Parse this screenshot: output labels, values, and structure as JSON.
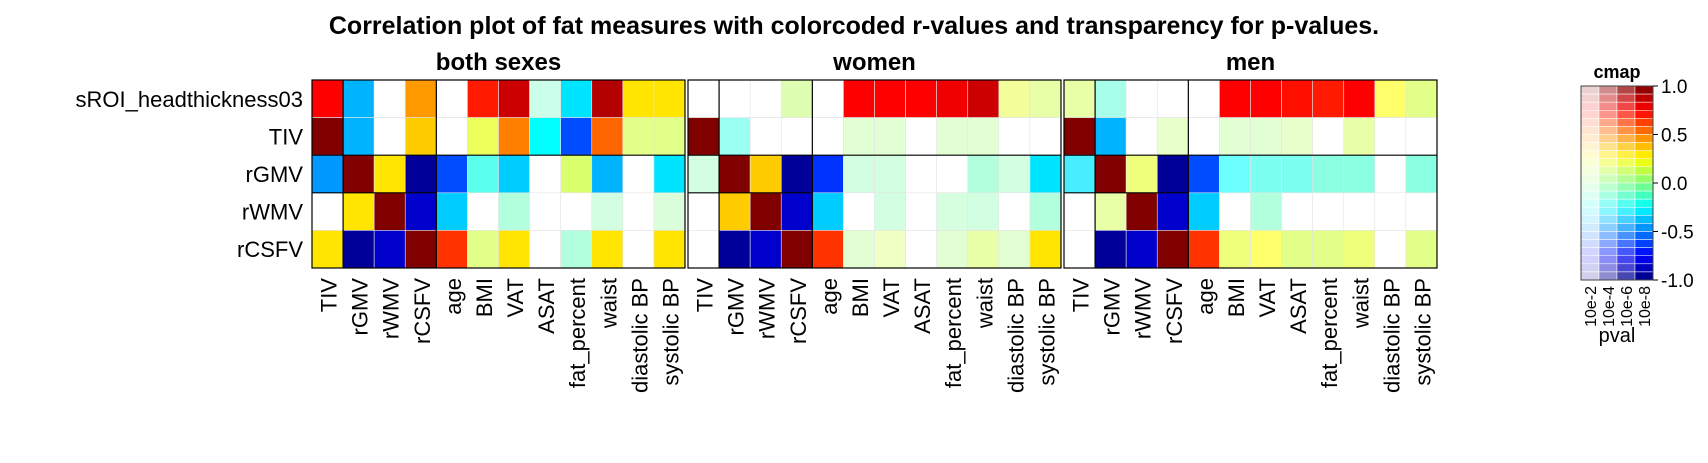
{
  "chart_data": {
    "type": "heatmap",
    "title": "Correlation plot of fat measures with colorcoded r-values and transparency for p-values.",
    "rows": [
      "sROI_headthickness03",
      "TIV",
      "rGMV",
      "rWMV",
      "rCSFV"
    ],
    "columns": [
      "TIV",
      "rGMV",
      "rWMV",
      "rCSFV",
      "age",
      "BMI",
      "VAT",
      "ASAT",
      "fat_percent",
      "waist",
      "diastolic BP",
      "systolic BP"
    ],
    "panels": [
      {
        "title": "both sexes",
        "r": [
          [
            0.75,
            -0.4,
            0.0,
            0.45,
            0.0,
            0.7,
            0.85,
            -0.1,
            -0.3,
            0.9,
            0.3,
            0.3
          ],
          [
            1.0,
            -0.4,
            0.0,
            0.35,
            0.0,
            0.2,
            0.5,
            -0.25,
            -0.6,
            0.55,
            0.15,
            0.15
          ],
          [
            -0.45,
            1.0,
            0.3,
            -0.95,
            -0.6,
            -0.2,
            -0.35,
            0.0,
            0.15,
            -0.4,
            0.0,
            -0.3
          ],
          [
            0.0,
            0.3,
            1.0,
            -0.85,
            -0.35,
            0.0,
            -0.1,
            0.0,
            0.0,
            -0.05,
            0.0,
            0.0
          ],
          [
            0.3,
            -0.95,
            -0.85,
            1.0,
            0.65,
            0.15,
            0.3,
            0.0,
            -0.1,
            0.3,
            0.0,
            0.3
          ]
        ],
        "p": [
          [
            1e-08,
            1e-08,
            0.1,
            1e-08,
            0.1,
            1e-08,
            1e-08,
            0.001,
            1e-08,
            1e-08,
            1e-08,
            1e-08
          ],
          [
            1e-08,
            1e-08,
            0.1,
            1e-08,
            0.1,
            1e-06,
            1e-08,
            1e-08,
            1e-08,
            1e-08,
            1e-05,
            1e-05
          ],
          [
            1e-08,
            1e-08,
            1e-08,
            1e-08,
            1e-08,
            1e-06,
            1e-08,
            0.1,
            1e-06,
            1e-08,
            0.1,
            1e-08
          ],
          [
            0.1,
            1e-08,
            1e-08,
            1e-08,
            1e-08,
            0.1,
            0.0001,
            0.1,
            0.1,
            0.001,
            0.1,
            0.001
          ],
          [
            1e-08,
            1e-08,
            1e-08,
            1e-08,
            1e-08,
            1e-05,
            1e-08,
            0.1,
            0.0001,
            1e-08,
            0.1,
            1e-08
          ]
        ]
      },
      {
        "title": "women",
        "r": [
          [
            0.0,
            0.0,
            0.0,
            0.1,
            0.0,
            0.75,
            0.75,
            0.75,
            0.78,
            0.85,
            0.2,
            0.15
          ],
          [
            1.0,
            -0.2,
            0.0,
            0.0,
            0.0,
            0.05,
            0.05,
            0.0,
            0.05,
            0.05,
            0.0,
            0.0
          ],
          [
            -0.05,
            1.0,
            0.35,
            -0.95,
            -0.65,
            -0.05,
            -0.05,
            0.0,
            0.0,
            -0.1,
            -0.05,
            -0.3
          ],
          [
            0.0,
            0.35,
            1.0,
            -0.85,
            -0.35,
            0.0,
            -0.05,
            0.0,
            -0.03,
            -0.05,
            0.0,
            -0.1
          ],
          [
            0.0,
            -0.95,
            -0.85,
            1.0,
            0.65,
            0.05,
            0.15,
            0.0,
            0.05,
            0.15,
            0.05,
            0.3
          ]
        ],
        "p": [
          [
            0.1,
            0.1,
            0.1,
            0.0001,
            0.1,
            1e-08,
            1e-08,
            1e-08,
            1e-08,
            1e-08,
            0.0001,
            0.0001
          ],
          [
            1e-08,
            0.0001,
            0.1,
            0.1,
            0.1,
            0.001,
            0.001,
            0.1,
            0.001,
            0.001,
            0.1,
            0.1
          ],
          [
            0.001,
            1e-08,
            1e-08,
            1e-08,
            1e-08,
            0.001,
            0.001,
            0.1,
            0.1,
            0.0001,
            0.001,
            1e-08
          ],
          [
            0.1,
            1e-08,
            1e-08,
            1e-08,
            1e-08,
            0.1,
            0.001,
            0.1,
            0.001,
            0.001,
            0.1,
            0.0001
          ],
          [
            0.1,
            1e-08,
            1e-08,
            1e-08,
            1e-08,
            0.001,
            0.001,
            0.1,
            0.001,
            0.0001,
            0.001,
            1e-08
          ]
        ]
      },
      {
        "title": "men",
        "r": [
          [
            0.15,
            -0.15,
            0.0,
            0.0,
            0.0,
            0.75,
            0.75,
            0.72,
            0.7,
            0.75,
            0.25,
            0.15
          ],
          [
            1.0,
            -0.4,
            0.0,
            0.1,
            0.0,
            0.05,
            0.05,
            0.1,
            0.0,
            0.15,
            0.0,
            0.0
          ],
          [
            -0.3,
            1.0,
            0.2,
            -0.95,
            -0.6,
            -0.25,
            -0.2,
            -0.2,
            -0.15,
            -0.15,
            0.0,
            -0.15
          ],
          [
            0.0,
            0.15,
            1.0,
            -0.85,
            -0.35,
            0.0,
            -0.1,
            0.0,
            0.0,
            0.0,
            0.0,
            0.0
          ],
          [
            0.0,
            -0.95,
            -0.85,
            1.0,
            0.65,
            0.2,
            0.25,
            0.15,
            0.15,
            0.2,
            0.0,
            0.15
          ]
        ],
        "p": [
          [
            0.0001,
            0.0001,
            0.1,
            0.1,
            0.1,
            1e-08,
            1e-08,
            1e-08,
            1e-08,
            1e-08,
            1e-05,
            1e-05
          ],
          [
            1e-08,
            1e-08,
            0.1,
            0.001,
            0.1,
            0.001,
            0.001,
            0.001,
            0.1,
            0.0001,
            0.1,
            0.1
          ],
          [
            1e-06,
            1e-08,
            1e-05,
            1e-08,
            1e-08,
            1e-05,
            1e-05,
            1e-05,
            1e-05,
            1e-05,
            0.1,
            1e-05
          ],
          [
            0.1,
            0.0001,
            1e-08,
            1e-08,
            1e-08,
            0.1,
            0.0001,
            0.1,
            0.1,
            0.1,
            0.1,
            0.1
          ],
          [
            0.1,
            1e-08,
            1e-08,
            1e-08,
            1e-08,
            1e-05,
            1e-05,
            1e-05,
            1e-05,
            1e-05,
            0.1,
            1e-05
          ]
        ]
      }
    ],
    "colorbar": {
      "title": "cmap",
      "xlabel": "pval",
      "r_ticks": [
        "1.0",
        "0.5",
        "0.0",
        "-0.5",
        "-1.0"
      ],
      "r_tick_values": [
        1.0,
        0.5,
        0.0,
        -0.5,
        -1.0
      ],
      "p_ticks": [
        "10e-2",
        "10e-4",
        "10e-6",
        "10e-8"
      ],
      "colormap": "jet"
    }
  }
}
